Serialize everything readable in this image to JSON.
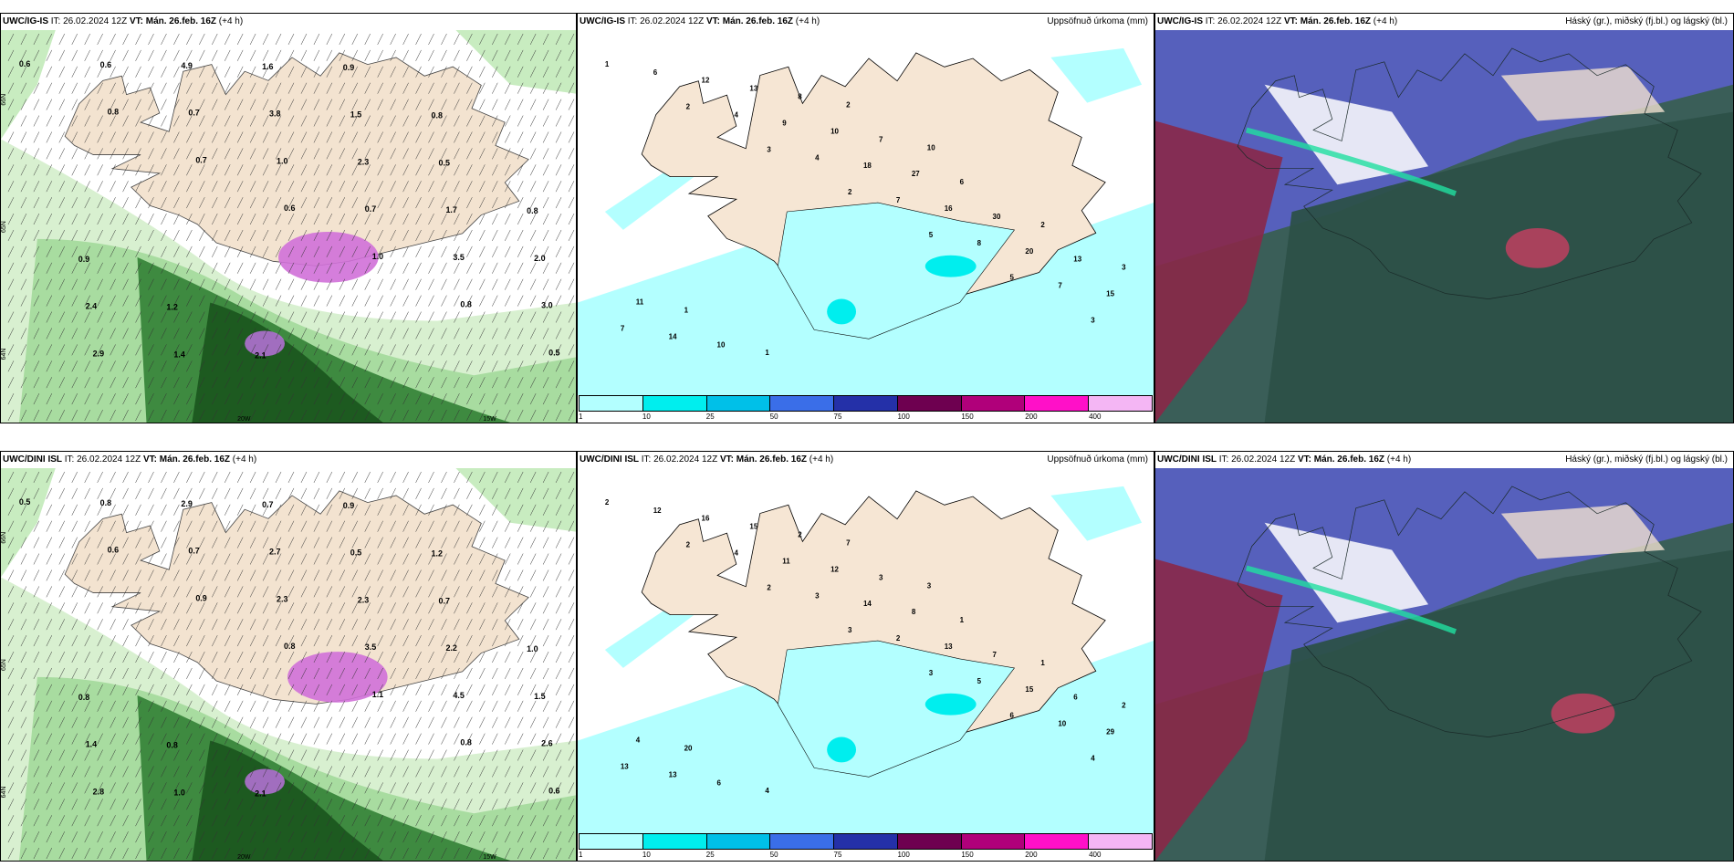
{
  "colorbar": {
    "colors": [
      "#b3ffff",
      "#00eeee",
      "#00c0e8",
      "#3a6ee8",
      "#2430a8",
      "#6e0050",
      "#b0007a",
      "#ff10c8",
      "#f4b6f4"
    ],
    "ticks": [
      "1",
      "10",
      "25",
      "50",
      "75",
      "100",
      "150",
      "200",
      "400"
    ]
  },
  "rows": [
    {
      "model": "UWC/IG-IS",
      "panels": [
        {
          "type": "wind",
          "model": "UWC/IG-IS",
          "it": "IT: 26.02.2024 12Z",
          "vt_label": "VT:",
          "vt_value": "Mán. 26.feb. 16Z",
          "lead": "(+4 h)",
          "right_title": "",
          "lat_labels": [
            "66N",
            "65N",
            "64N"
          ],
          "lon_labels": [
            "20W",
            "15W"
          ],
          "values": [
            "0.6",
            "0.8",
            "0.7",
            "0.6",
            "1.0",
            "0.8",
            "0.5",
            "0.6",
            "0.7",
            "1.0",
            "0.7",
            "3.5",
            "3.0",
            "2.9",
            "4.9",
            "3.8",
            "2.3",
            "1.7",
            "2.0",
            "2.4",
            "1.4",
            "1.6",
            "1.5",
            "0.5",
            "0.8",
            "0.9",
            "1.2",
            "2.1",
            "0.9",
            "0.8"
          ]
        },
        {
          "type": "precip",
          "model": "UWC/IG-IS",
          "it": "IT: 26.02.2024 12Z",
          "vt_label": "VT:",
          "vt_value": "Mán. 26.feb. 16Z",
          "lead": "(+4 h)",
          "right_title": "Uppsöfnuð úrkoma (mm)",
          "values": [
            "1",
            "2",
            "3",
            "2",
            "5",
            "5",
            "3",
            "6",
            "4",
            "4",
            "7",
            "8",
            "7",
            "7",
            "12",
            "9",
            "18",
            "16",
            "20",
            "15",
            "14",
            "13",
            "10",
            "27",
            "30",
            "13",
            "11",
            "10",
            "8",
            "7",
            "6",
            "2",
            "3",
            "1",
            "1",
            "2",
            "10"
          ]
        },
        {
          "type": "cloud",
          "model": "UWC/IG-IS",
          "it": "IT: 26.02.2024 12Z",
          "vt_label": "VT:",
          "vt_value": "Mán. 26.feb. 16Z",
          "lead": "(+4 h)",
          "right_title": "Háský (gr.), miðský (fj.bl.) og lágský (bl.)"
        }
      ]
    },
    {
      "model": "UWC/DINI ISL",
      "panels": [
        {
          "type": "wind",
          "model": "UWC/DINI ISL",
          "it": "IT: 26.02.2024 12Z",
          "vt_label": "VT:",
          "vt_value": "Mán. 26.feb. 16Z",
          "lead": "(+4 h)",
          "right_title": "",
          "lat_labels": [
            "66N",
            "65N",
            "64N"
          ],
          "lon_labels": [
            "20W",
            "15W"
          ],
          "values": [
            "0.5",
            "0.6",
            "0.9",
            "0.8",
            "1.1",
            "0.8",
            "0.6",
            "0.8",
            "0.7",
            "2.3",
            "3.5",
            "4.5",
            "2.6",
            "2.8",
            "2.9",
            "2.7",
            "2.3",
            "2.2",
            "1.5",
            "1.4",
            "1.0",
            "0.7",
            "0.5",
            "0.7",
            "1.0",
            "0.8",
            "0.8",
            "2.1",
            "0.9",
            "1.2"
          ]
        },
        {
          "type": "precip",
          "model": "UWC/DINI ISL",
          "it": "IT: 26.02.2024 12Z",
          "vt_label": "VT:",
          "vt_value": "Mán. 26.feb. 16Z",
          "lead": "(+4 h)",
          "right_title": "Uppsöfnuð úrkoma (mm)",
          "values": [
            "2",
            "2",
            "2",
            "3",
            "3",
            "6",
            "4",
            "12",
            "4",
            "3",
            "2",
            "5",
            "10",
            "13",
            "16",
            "11",
            "14",
            "13",
            "15",
            "29",
            "13",
            "15",
            "12",
            "8",
            "7",
            "6",
            "4",
            "6",
            "2",
            "3",
            "1",
            "1",
            "2",
            "20",
            "4",
            "7",
            "3"
          ]
        },
        {
          "type": "cloud",
          "model": "UWC/DINI ISL",
          "it": "IT: 26.02.2024 12Z",
          "vt_label": "VT:",
          "vt_value": "Mán. 26.feb. 16Z",
          "lead": "(+4 h)",
          "right_title": "Háský (gr.), miðský (fj.bl.) og lágský (bl.)"
        }
      ]
    }
  ]
}
